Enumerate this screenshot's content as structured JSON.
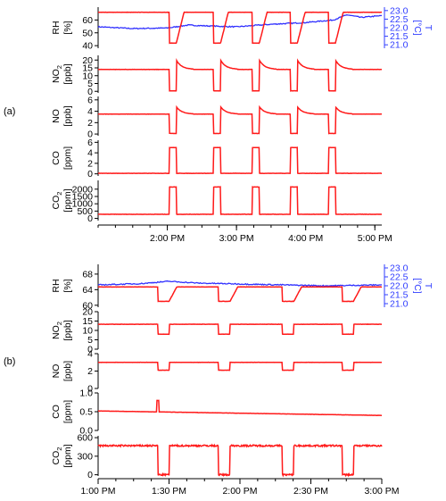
{
  "chart_data": [
    {
      "panel_label": "(a)",
      "type": "line",
      "x_ticks": [
        "2:00 PM",
        "3:00 PM",
        "4:00 PM",
        "5:00 PM"
      ],
      "x_range_hours": [
        13.0,
        17.1
      ],
      "series_colors": {
        "primary": "#ff1a1a",
        "secondary": "#3030ff"
      },
      "subplots": [
        {
          "ylabel": "RH",
          "yunit": "[%]",
          "ylim": [
            38,
            70
          ],
          "yticks": [
            "40",
            "50",
            "60"
          ],
          "right_axis": {
            "ylabel": "T",
            "yunit": "[°C]",
            "ylim": [
              20.8,
              23.2
            ],
            "yticks": [
              "21.0",
              "21.5",
              "22.0",
              "22.5",
              "23.0"
            ]
          },
          "pattern": {
            "baseline": 66,
            "event": 42,
            "shape": "dip"
          },
          "right_series": [
            [
              13.0,
              22.05
            ],
            [
              13.5,
              21.95
            ],
            [
              14.0,
              21.98
            ],
            [
              14.3,
              22.15
            ],
            [
              14.6,
              22.1
            ],
            [
              15.0,
              22.05
            ],
            [
              15.5,
              22.2
            ],
            [
              16.0,
              22.3
            ],
            [
              16.4,
              22.45
            ],
            [
              16.6,
              22.75
            ],
            [
              16.8,
              22.6
            ],
            [
              17.1,
              22.7
            ]
          ]
        },
        {
          "ylabel": "NO2",
          "ysub": "2",
          "yunit": "[ppb]",
          "ylim": [
            -1,
            23
          ],
          "yticks": [
            "0",
            "5",
            "10",
            "15",
            "20"
          ],
          "pattern": {
            "baseline": 14,
            "event": 0.3,
            "shape": "dip_spike",
            "spike": 20
          }
        },
        {
          "ylabel": "NO",
          "yunit": "[ppb]",
          "ylim": [
            -0.3,
            6.6
          ],
          "yticks": [
            "0",
            "2",
            "4",
            "6"
          ],
          "pattern": {
            "baseline": 3.5,
            "event": 0.1,
            "shape": "dip_spike",
            "spike": 4.8
          }
        },
        {
          "ylabel": "CO",
          "yunit": "[ppm]",
          "ylim": [
            -0.4,
            6.4
          ],
          "yticks": [
            "0",
            "2",
            "4",
            "6"
          ],
          "pattern": {
            "baseline": 0.1,
            "event": 5.0,
            "shape": "pulse"
          }
        },
        {
          "ylabel": "CO2",
          "ysub": "2",
          "yunit": "[ppm]",
          "ylim": [
            -150,
            2600
          ],
          "yticks": [
            "0",
            "500",
            "1000",
            "1500",
            "2000"
          ],
          "pattern": {
            "baseline": 280,
            "event": 2150,
            "shape": "pulse"
          }
        }
      ],
      "events": [
        [
          14.03,
          14.13
        ],
        [
          14.67,
          14.77
        ],
        [
          15.23,
          15.33
        ],
        [
          15.78,
          15.88
        ],
        [
          16.33,
          16.43
        ]
      ]
    },
    {
      "panel_label": "(b)",
      "type": "line",
      "x_ticks": [
        "1:00 PM",
        "1:30 PM",
        "2:00 PM",
        "2:30 PM",
        "3:00 PM"
      ],
      "x_range_hours": [
        13.0,
        15.0
      ],
      "series_colors": {
        "primary": "#ff1a1a",
        "secondary": "#3030ff"
      },
      "subplots": [
        {
          "ylabel": "RH",
          "yunit": "[%]",
          "ylim": [
            59.5,
            70.5
          ],
          "yticks": [
            "60",
            "64",
            "68"
          ],
          "right_axis": {
            "ylabel": "T",
            "yunit": "[°C]",
            "ylim": [
              20.8,
              23.2
            ],
            "yticks": [
              "21.0",
              "21.5",
              "22.0",
              "22.5",
              "23.0"
            ]
          },
          "pattern": {
            "baseline": 64.7,
            "event": 61.0,
            "shape": "dip"
          },
          "right_series": [
            [
              13.0,
              22.05
            ],
            [
              13.3,
              22.12
            ],
            [
              13.5,
              22.25
            ],
            [
              13.7,
              22.15
            ],
            [
              14.0,
              22.1
            ],
            [
              14.3,
              22.05
            ],
            [
              14.6,
              22.0
            ],
            [
              15.0,
              22.05
            ]
          ]
        },
        {
          "ylabel": "NO2",
          "ysub": "2",
          "yunit": "[ppb]",
          "ylim": [
            0,
            20
          ],
          "yticks": [
            "0",
            "5",
            "10",
            "15",
            "20"
          ],
          "pattern": {
            "baseline": 13.3,
            "event": 8.0,
            "shape": "dip"
          }
        },
        {
          "ylabel": "NO",
          "yunit": "[ppb]",
          "ylim": [
            0,
            4
          ],
          "yticks": [
            "0",
            "2",
            "4"
          ],
          "pattern": {
            "baseline": 3.0,
            "event": 2.1,
            "shape": "dip"
          }
        },
        {
          "ylabel": "CO",
          "yunit": "[ppm]",
          "ylim": [
            0,
            1
          ],
          "yticks": [
            "0.0",
            "0.5",
            "1.0"
          ],
          "pattern": {
            "baseline": 0.52,
            "shape": "flat_decline",
            "end": 0.4,
            "spike": 0.8
          }
        },
        {
          "ylabel": "CO2",
          "ysub": "2",
          "yunit": "[ppm]",
          "ylim": [
            -20,
            630
          ],
          "yticks": [
            "0",
            "300",
            "600"
          ],
          "pattern": {
            "baseline": 470,
            "event": 0,
            "shape": "dip"
          }
        }
      ],
      "events": [
        [
          13.42,
          13.5
        ],
        [
          13.85,
          13.93
        ],
        [
          14.3,
          14.38
        ],
        [
          14.72,
          14.8
        ]
      ]
    }
  ]
}
